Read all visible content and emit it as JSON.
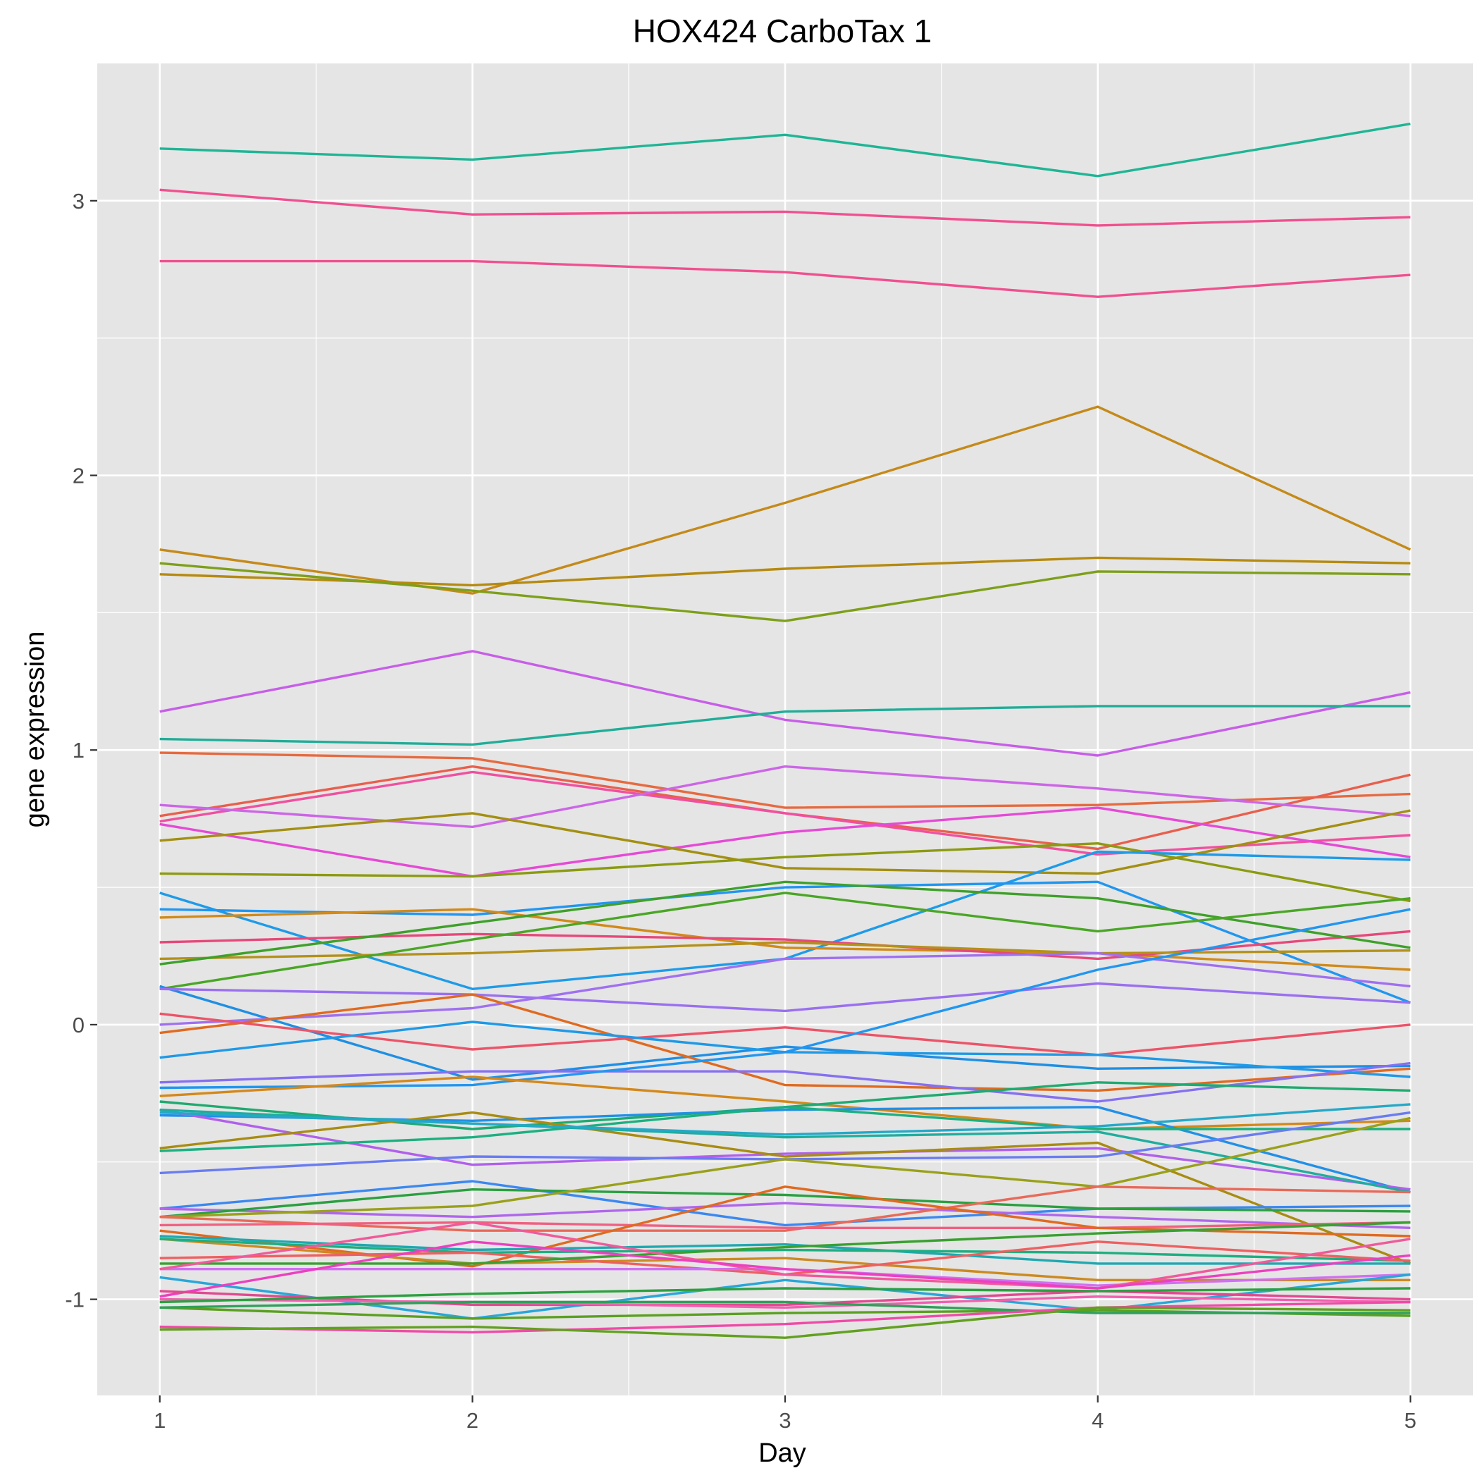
{
  "chart_data": {
    "type": "line",
    "title": "HOX424 CarboTax 1",
    "xlabel": "Day",
    "ylabel": "gene expression",
    "x": [
      1,
      2,
      3,
      4,
      5
    ],
    "x_ticks": [
      "1",
      "2",
      "3",
      "4",
      "5"
    ],
    "y_ticks": [
      -1,
      0,
      1,
      2,
      3
    ],
    "y_tick_labels": [
      "-1",
      "0",
      "1",
      "2",
      "3"
    ],
    "xlim": [
      0.8,
      5.2
    ],
    "ylim": [
      -1.35,
      3.5
    ],
    "grid": true,
    "legend": "none",
    "colors": {
      "panel_background": "#e5e5e5",
      "grid_line": "#ffffff",
      "tick_label": "#4d4d4d",
      "tick_mark": "#333333",
      "title": "#000000"
    },
    "series": [
      {
        "values": [
          3.19,
          3.15,
          3.24,
          3.09,
          3.28
        ],
        "color": "#1fb595"
      },
      {
        "values": [
          3.04,
          2.95,
          2.96,
          2.91,
          2.94
        ],
        "color": "#f0508f"
      },
      {
        "values": [
          2.78,
          2.78,
          2.74,
          2.65,
          2.73
        ],
        "color": "#f0508f"
      },
      {
        "values": [
          1.73,
          1.57,
          1.9,
          2.25,
          1.73
        ],
        "color": "#c48a1a"
      },
      {
        "values": [
          1.64,
          1.6,
          1.66,
          1.7,
          1.68
        ],
        "color": "#b58a10"
      },
      {
        "values": [
          1.68,
          1.58,
          1.47,
          1.65,
          1.64
        ],
        "color": "#7e9f1a"
      },
      {
        "values": [
          1.14,
          1.36,
          1.11,
          0.98,
          1.21
        ],
        "color": "#c75ee8"
      },
      {
        "values": [
          1.04,
          1.02,
          1.14,
          1.16,
          1.16
        ],
        "color": "#20ad98"
      },
      {
        "values": [
          0.99,
          0.97,
          0.79,
          0.8,
          0.84
        ],
        "color": "#e66a40"
      },
      {
        "values": [
          0.76,
          0.94,
          0.77,
          0.64,
          0.91
        ],
        "color": "#e85f4d"
      },
      {
        "values": [
          0.74,
          0.92,
          0.77,
          0.62,
          0.69
        ],
        "color": "#f050a0"
      },
      {
        "values": [
          0.8,
          0.72,
          0.94,
          0.86,
          0.76
        ],
        "color": "#cc66e6"
      },
      {
        "values": [
          0.73,
          0.54,
          0.7,
          0.79,
          0.61
        ],
        "color": "#e54ad6"
      },
      {
        "values": [
          0.67,
          0.77,
          0.57,
          0.55,
          0.78
        ],
        "color": "#a38f12"
      },
      {
        "values": [
          0.55,
          0.54,
          0.61,
          0.66,
          0.45
        ],
        "color": "#8c9a10"
      },
      {
        "values": [
          0.48,
          0.13,
          0.24,
          0.63,
          0.6
        ],
        "color": "#1e9be8"
      },
      {
        "values": [
          0.42,
          0.4,
          0.5,
          0.52,
          0.08
        ],
        "color": "#2196f0"
      },
      {
        "values": [
          0.39,
          0.42,
          0.28,
          0.26,
          0.2
        ],
        "color": "#d18a1a"
      },
      {
        "values": [
          0.3,
          0.33,
          0.31,
          0.24,
          0.34
        ],
        "color": "#e6487a"
      },
      {
        "values": [
          0.24,
          0.26,
          0.3,
          0.26,
          0.27
        ],
        "color": "#b3911a"
      },
      {
        "values": [
          0.22,
          0.37,
          0.52,
          0.46,
          0.28
        ],
        "color": "#3fa02a"
      },
      {
        "values": [
          0.13,
          0.31,
          0.48,
          0.34,
          0.46
        ],
        "color": "#4aa626"
      },
      {
        "values": [
          0.14,
          -0.2,
          -0.08,
          -0.16,
          -0.15
        ],
        "color": "#1f8fe3"
      },
      {
        "values": [
          0.13,
          0.11,
          0.05,
          0.15,
          0.08
        ],
        "color": "#9a70ef"
      },
      {
        "values": [
          0.0,
          0.06,
          0.24,
          0.26,
          0.14
        ],
        "color": "#a070f0"
      },
      {
        "values": [
          -0.03,
          0.11,
          -0.22,
          -0.24,
          -0.16
        ],
        "color": "#e06a20"
      },
      {
        "values": [
          0.04,
          -0.09,
          -0.01,
          -0.11,
          0.0
        ],
        "color": "#ec5468"
      },
      {
        "values": [
          -0.12,
          0.01,
          -0.1,
          -0.11,
          -0.19
        ],
        "color": "#1f99e6"
      },
      {
        "values": [
          -0.21,
          -0.17,
          -0.17,
          -0.28,
          -0.14
        ],
        "color": "#8570f0"
      },
      {
        "values": [
          -0.23,
          -0.22,
          -0.1,
          0.2,
          0.42
        ],
        "color": "#2196f0"
      },
      {
        "values": [
          -0.26,
          -0.19,
          -0.28,
          -0.38,
          -0.35
        ],
        "color": "#d4881a"
      },
      {
        "values": [
          -0.28,
          -0.38,
          -0.3,
          -0.21,
          -0.24
        ],
        "color": "#1faa70"
      },
      {
        "values": [
          -0.33,
          -0.35,
          -0.31,
          -0.3,
          -0.61
        ],
        "color": "#2190e8"
      },
      {
        "values": [
          -0.31,
          -0.51,
          -0.47,
          -0.45,
          -0.6
        ],
        "color": "#b060ec"
      },
      {
        "values": [
          -0.45,
          -0.32,
          -0.48,
          -0.43,
          -0.87
        ],
        "color": "#a88c12"
      },
      {
        "values": [
          -0.46,
          -0.41,
          -0.3,
          -0.38,
          -0.38
        ],
        "color": "#1cb080"
      },
      {
        "values": [
          -0.31,
          -0.36,
          -0.41,
          -0.39,
          -0.61
        ],
        "color": "#20ad9e"
      },
      {
        "values": [
          -0.32,
          -0.36,
          -0.4,
          -0.37,
          -0.29
        ],
        "color": "#25a8c8"
      },
      {
        "values": [
          -0.54,
          -0.48,
          -0.49,
          -0.48,
          -0.32
        ],
        "color": "#6a7cf0"
      },
      {
        "values": [
          -0.67,
          -0.57,
          -0.73,
          -0.67,
          -0.66
        ],
        "color": "#3b88f0"
      },
      {
        "values": [
          -0.67,
          -0.7,
          -0.65,
          -0.7,
          -0.74
        ],
        "color": "#b066ec"
      },
      {
        "values": [
          -0.7,
          -0.6,
          -0.62,
          -0.67,
          -0.68
        ],
        "color": "#2aa040"
      },
      {
        "values": [
          -0.7,
          -0.66,
          -0.49,
          -0.59,
          -0.34
        ],
        "color": "#9aa01a"
      },
      {
        "values": [
          -0.7,
          -0.75,
          -0.75,
          -0.59,
          -0.61
        ],
        "color": "#e86a5a"
      },
      {
        "values": [
          -0.73,
          -0.72,
          -0.74,
          -0.74,
          -0.72
        ],
        "color": "#f06080"
      },
      {
        "values": [
          -0.75,
          -0.88,
          -0.59,
          -0.74,
          -0.77
        ],
        "color": "#e06a20"
      },
      {
        "values": [
          -0.78,
          -0.87,
          -0.85,
          -0.93,
          -0.93
        ],
        "color": "#cc8a20"
      },
      {
        "values": [
          -0.77,
          -0.82,
          -0.8,
          -0.87,
          -0.87
        ],
        "color": "#20a8b0"
      },
      {
        "values": [
          -0.78,
          -0.83,
          -0.82,
          -0.83,
          -0.86
        ],
        "color": "#1fae80"
      },
      {
        "values": [
          -0.85,
          -0.83,
          -0.91,
          -0.79,
          -0.86
        ],
        "color": "#ee6060"
      },
      {
        "values": [
          -0.87,
          -0.87,
          -0.81,
          -0.76,
          -0.72
        ],
        "color": "#3aa030"
      },
      {
        "values": [
          -0.89,
          -0.89,
          -0.89,
          -0.95,
          -0.91
        ],
        "color": "#d070f0"
      },
      {
        "values": [
          -0.89,
          -0.72,
          -0.91,
          -0.96,
          -0.78
        ],
        "color": "#f05a9a"
      },
      {
        "values": [
          -0.92,
          -1.07,
          -0.93,
          -1.04,
          -0.91
        ],
        "color": "#29a6d8"
      },
      {
        "values": [
          -0.99,
          -0.79,
          -0.89,
          -0.96,
          -0.84
        ],
        "color": "#ec40c0"
      },
      {
        "values": [
          -0.97,
          -1.02,
          -1.02,
          -0.97,
          -1.0
        ],
        "color": "#e04a90"
      },
      {
        "values": [
          -1.0,
          -1.01,
          -1.03,
          -0.99,
          -1.01
        ],
        "color": "#f060b0"
      },
      {
        "values": [
          -1.01,
          -0.98,
          -0.96,
          -0.97,
          -0.96
        ],
        "color": "#2ca040"
      },
      {
        "values": [
          -1.03,
          -1.07,
          -1.05,
          -1.04,
          -1.06
        ],
        "color": "#5aa020"
      },
      {
        "values": [
          -1.03,
          -1.01,
          -1.01,
          -1.05,
          -1.05
        ],
        "color": "#2fa05a"
      },
      {
        "values": [
          -1.1,
          -1.12,
          -1.09,
          -1.03,
          -1.01
        ],
        "color": "#f04aa8"
      },
      {
        "values": [
          -1.11,
          -1.1,
          -1.14,
          -1.03,
          -1.04
        ],
        "color": "#62a020"
      }
    ]
  }
}
